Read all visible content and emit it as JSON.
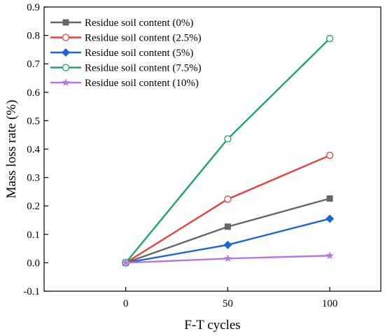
{
  "chart_data": {
    "type": "line",
    "xlabel": "F-T cycles",
    "ylabel": "Mass loss rate (%)",
    "x": [
      0,
      50,
      100
    ],
    "xlim": [
      -40,
      125
    ],
    "ylim": [
      -0.1,
      0.9
    ],
    "x_ticks": [
      "0",
      "50",
      "100"
    ],
    "y_ticks": [
      "-0.1",
      "0.0",
      "0.1",
      "0.2",
      "0.3",
      "0.4",
      "0.5",
      "0.6",
      "0.7",
      "0.8",
      "0.9"
    ],
    "grid": false,
    "legend_position": "top-left",
    "series": [
      {
        "name": "Residue soil content (0%)",
        "values": [
          0,
          0.127,
          0.226
        ],
        "color": "#666666",
        "marker": "square-filled"
      },
      {
        "name": "Residue soil content (2.5%)",
        "values": [
          0,
          0.224,
          0.378
        ],
        "color": "#e8403b",
        "marker": "circle-open"
      },
      {
        "name": "Residue soil content (5%)",
        "values": [
          0,
          0.063,
          0.155
        ],
        "color": "#1f63d6",
        "marker": "diamond-filled"
      },
      {
        "name": "Residue soil content (7.5%)",
        "values": [
          0,
          0.436,
          0.789
        ],
        "color": "#1ea36d",
        "marker": "circle-open"
      },
      {
        "name": "Residue soil content (10%)",
        "values": [
          0,
          0.015,
          0.025
        ],
        "color": "#b877e0",
        "marker": "star-filled"
      }
    ]
  }
}
